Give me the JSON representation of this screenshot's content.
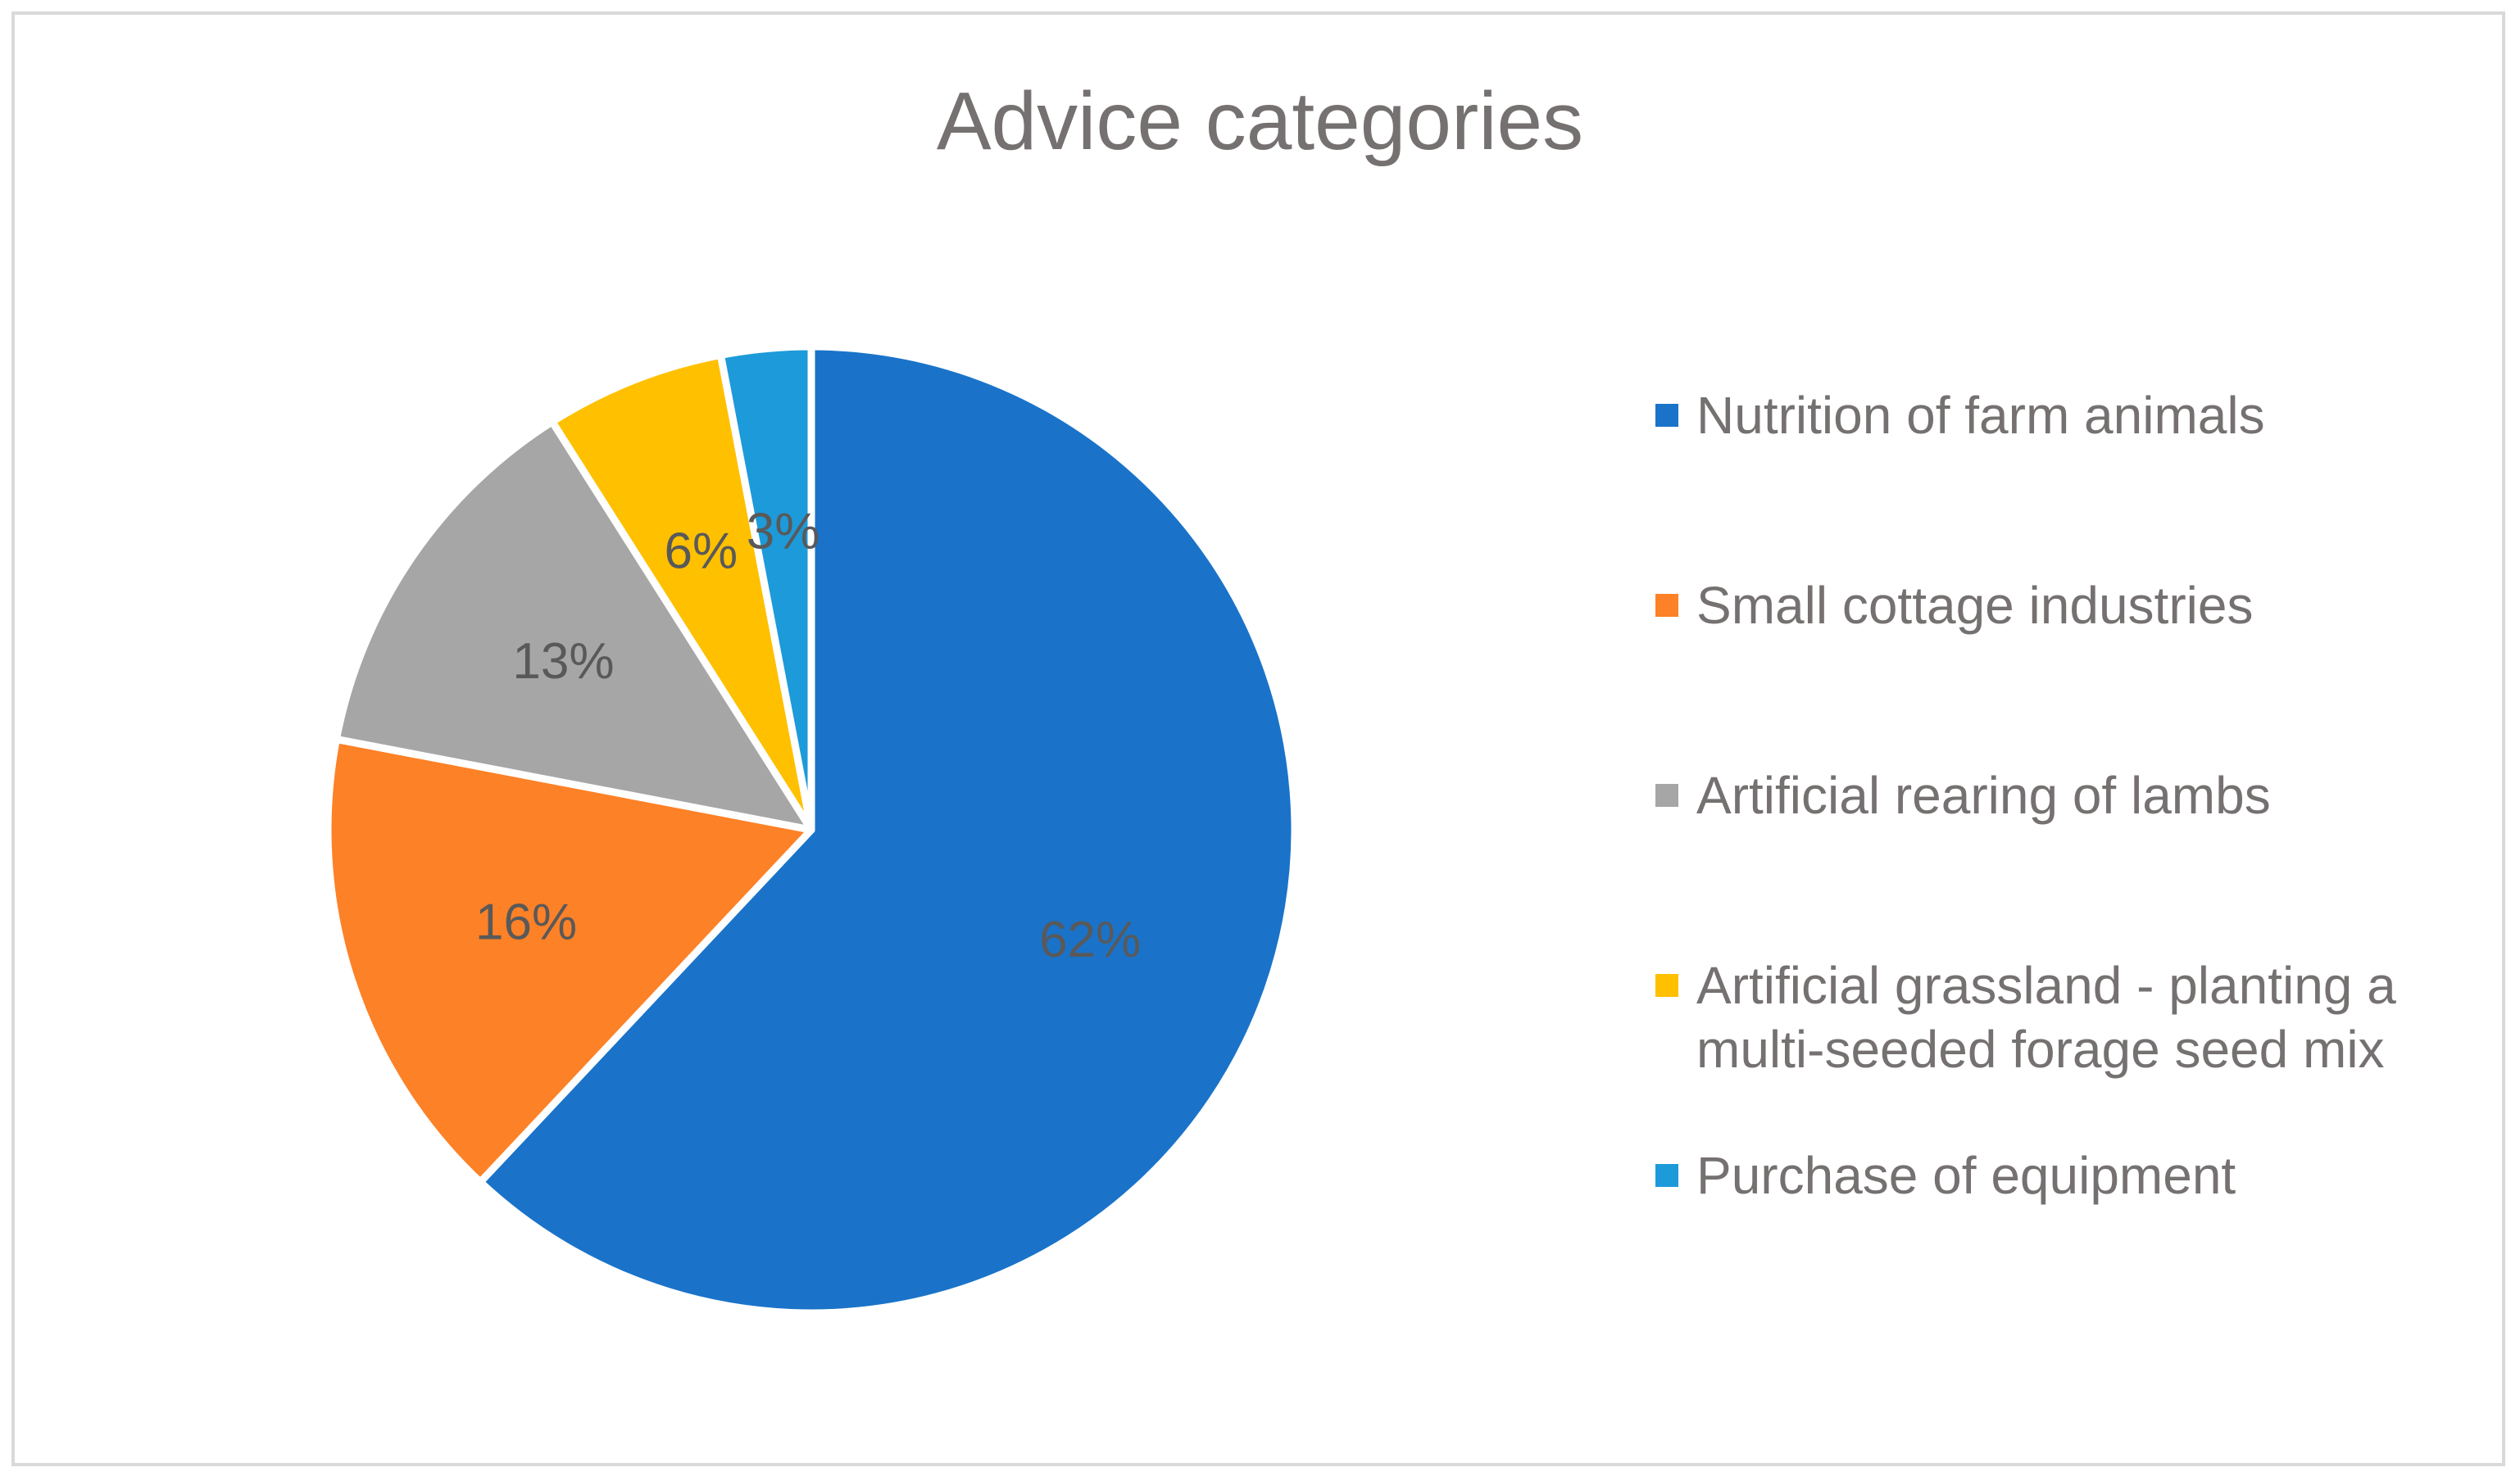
{
  "chart_data": {
    "type": "pie",
    "title": "Advice categories",
    "categories": [
      "Nutrition of farm animals",
      "Small cottage industries",
      "Artificial rearing of lambs",
      "Artificial grassland - planting a multi-seeded forage seed mix",
      "Purchase of equipment"
    ],
    "values": [
      62,
      16,
      13,
      6,
      3
    ],
    "labels": [
      "62%",
      "16%",
      "13%",
      "6%",
      "3%"
    ],
    "colors": [
      "#1a73c9",
      "#fd8127",
      "#a6a6a6",
      "#ffc000",
      "#1d9ad9"
    ],
    "legend_position": "right"
  },
  "legend": {
    "items": [
      {
        "label_lines": [
          "Nutrition of farm animals"
        ]
      },
      {
        "label_lines": [
          "Small cottage industries"
        ]
      },
      {
        "label_lines": [
          "Artificial rearing of lambs"
        ]
      },
      {
        "label_lines": [
          "Artificial grassland - planting a",
          "multi-seeded forage seed mix"
        ]
      },
      {
        "label_lines": [
          "Purchase of equipment"
        ]
      }
    ]
  }
}
